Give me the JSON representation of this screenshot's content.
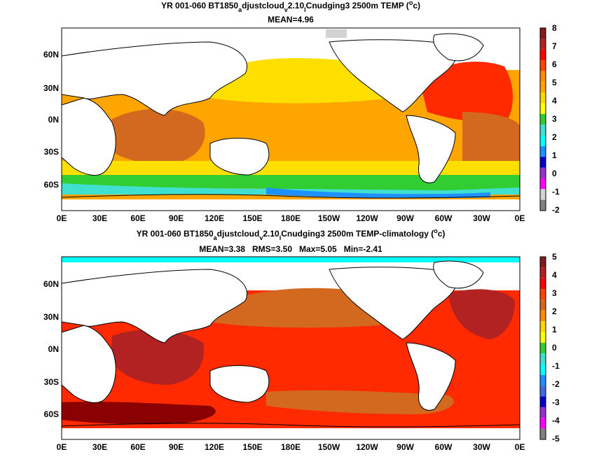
{
  "panels": [
    {
      "title_parts": [
        "YR 001-060 BT1850",
        "a",
        "djustcloud",
        "v",
        "2.10",
        "l",
        "Cnudging3 2500m TEMP (",
        "o",
        "c)"
      ],
      "subtitle": "MEAN=4.96",
      "colorbar_labels": [
        "8",
        "7",
        "6",
        "5",
        "4",
        "3",
        "2",
        "1",
        "0",
        "-1",
        "-2"
      ],
      "colorbar_colors": [
        "#7f1d1d",
        "#b22222",
        "#ff0000",
        "#ff4500",
        "#ff8c00",
        "#ffa500",
        "#ffd700",
        "#ffff00",
        "#32cd32",
        "#40e0d0",
        "#00ffff",
        "#1e90ff",
        "#0000cd",
        "#9932cc",
        "#ff00ff",
        "#d3d3d3",
        "#808080"
      ]
    },
    {
      "title_parts": [
        "YR 001-060 BT1850",
        "a",
        "djustcloud",
        "v",
        "2.10",
        "l",
        "Cnudging3 2500m TEMP-climatology (",
        "o",
        "c)"
      ],
      "subtitle": "MEAN=3.38   RMS=3.50   Max=5.05   Min=-2.41",
      "colorbar_labels": [
        "5",
        "4",
        "3",
        "2",
        "1",
        "0",
        "-1",
        "-2",
        "-3",
        "-4",
        "-5"
      ],
      "colorbar_colors": [
        "#7f1d1d",
        "#b22222",
        "#ff0000",
        "#ff4500",
        "#d2691e",
        "#ff8c00",
        "#ffd700",
        "#ffff00",
        "#32cd32",
        "#40e0d0",
        "#00ffff",
        "#1e90ff",
        "#4169e1",
        "#0000cd",
        "#9932cc",
        "#ff00ff",
        "#808080"
      ]
    }
  ],
  "axes": {
    "x_ticks": [
      "0E",
      "30E",
      "60E",
      "90E",
      "120E",
      "150E",
      "180E",
      "150W",
      "120W",
      "90W",
      "60W",
      "30W",
      "0E"
    ],
    "y_ticks": [
      "60N",
      "30N",
      "0N",
      "30S",
      "60S"
    ]
  },
  "colors": {
    "warm_orange": "#ffa500",
    "deep_orange": "#ff6a00",
    "yellow": "#ffdf00",
    "red": "#ff2a00",
    "dark_red": "#b22222",
    "brown": "#d2691e",
    "green": "#32cd32",
    "cyan": "#00ffff",
    "blue": "#1e90ff"
  }
}
